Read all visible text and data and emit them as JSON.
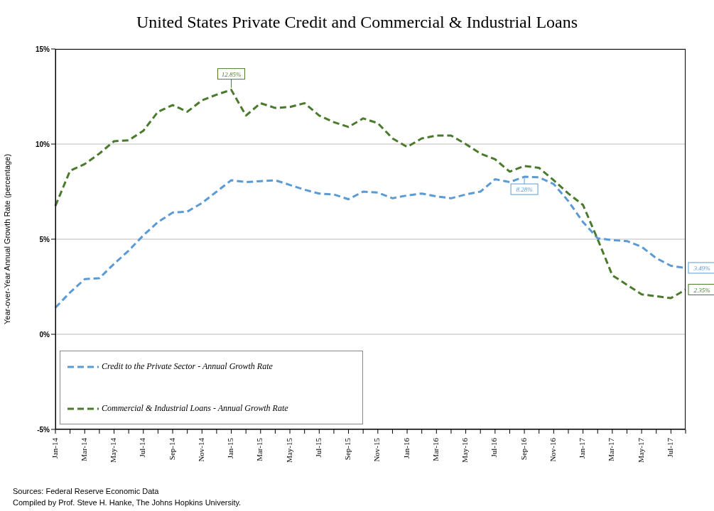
{
  "chart_data": {
    "type": "line",
    "title": "United States Private Credit and Commercial & Industrial Loans",
    "ylabel": "Year-over-Year Annual Growth Rate (percentage)",
    "categories": [
      "Jan-14",
      null,
      "Mar-14",
      null,
      "May-14",
      null,
      "Jul-14",
      null,
      "Sep-14",
      null,
      "Nov-14",
      null,
      "Jan-15",
      null,
      "Mar-15",
      null,
      "May-15",
      null,
      "Jul-15",
      null,
      "Sep-15",
      null,
      "Nov-15",
      null,
      "Jan-16",
      null,
      "Mar-16",
      null,
      "May-16",
      null,
      "Jul-16",
      null,
      "Sep-16",
      null,
      "Nov-16",
      null,
      "Jan-17",
      null,
      "Mar-17",
      null,
      "May-17",
      null,
      "Jul-17",
      null
    ],
    "series": [
      {
        "name": "Credit to the Private Sector - Annual Growth Rate",
        "color": "#5b9bd5",
        "values": [
          1.4,
          2.2,
          2.9,
          2.95,
          3.7,
          4.4,
          5.2,
          5.9,
          6.4,
          6.45,
          6.9,
          7.5,
          8.1,
          8.0,
          8.05,
          8.1,
          7.85,
          7.6,
          7.4,
          7.35,
          7.1,
          7.5,
          7.45,
          7.15,
          7.3,
          7.4,
          7.25,
          7.15,
          7.35,
          7.5,
          8.15,
          8.0,
          8.28,
          8.25,
          7.9,
          7.0,
          5.9,
          5.05,
          4.95,
          4.9,
          4.6,
          4.0,
          3.6,
          3.49
        ],
        "value_labels": [
          null,
          null,
          null,
          null,
          null,
          null,
          null,
          null,
          null,
          null,
          null,
          null,
          null,
          null,
          null,
          null,
          null,
          null,
          null,
          null,
          null,
          null,
          null,
          null,
          null,
          null,
          null,
          null,
          null,
          null,
          null,
          null,
          "8.28%",
          null,
          null,
          null,
          null,
          null,
          null,
          null,
          null,
          null,
          null,
          "3.49%"
        ]
      },
      {
        "name": "Commercial & Industrial Loans - Annual Growth Rate",
        "color": "#4a7a2c",
        "values": [
          6.75,
          8.6,
          8.95,
          9.5,
          10.15,
          10.2,
          10.7,
          11.7,
          12.05,
          11.7,
          12.3,
          12.6,
          12.85,
          11.5,
          12.15,
          11.9,
          11.95,
          12.15,
          11.5,
          11.15,
          10.9,
          11.35,
          11.1,
          10.3,
          9.85,
          10.3,
          10.45,
          10.45,
          10.0,
          9.5,
          9.2,
          8.55,
          8.85,
          8.75,
          8.1,
          7.4,
          6.8,
          5.0,
          3.1,
          2.6,
          2.1,
          2.0,
          1.9,
          2.35
        ],
        "value_labels": [
          null,
          null,
          null,
          null,
          null,
          null,
          null,
          null,
          null,
          null,
          null,
          null,
          "12.85%",
          null,
          null,
          null,
          null,
          null,
          null,
          null,
          null,
          null,
          null,
          null,
          null,
          null,
          null,
          null,
          null,
          null,
          null,
          null,
          null,
          null,
          null,
          null,
          null,
          null,
          null,
          null,
          null,
          null,
          null,
          "2.35%"
        ]
      }
    ],
    "ylim": [
      -5,
      15
    ],
    "yticks": [
      {
        "value": -5,
        "label": "-5%"
      },
      {
        "value": 0,
        "label": "0%"
      },
      {
        "value": 5,
        "label": "5%"
      },
      {
        "value": 10,
        "label": "10%"
      },
      {
        "value": 15,
        "label": "15%"
      }
    ],
    "grid": "y",
    "legend": "bottom left",
    "marker": "none",
    "line_style": "dashed",
    "annotations": [
      "Sources: Federal Reserve Economic Data",
      "Compiled by Prof. Steve H. Hanke, The Johns Hopkins University."
    ]
  }
}
